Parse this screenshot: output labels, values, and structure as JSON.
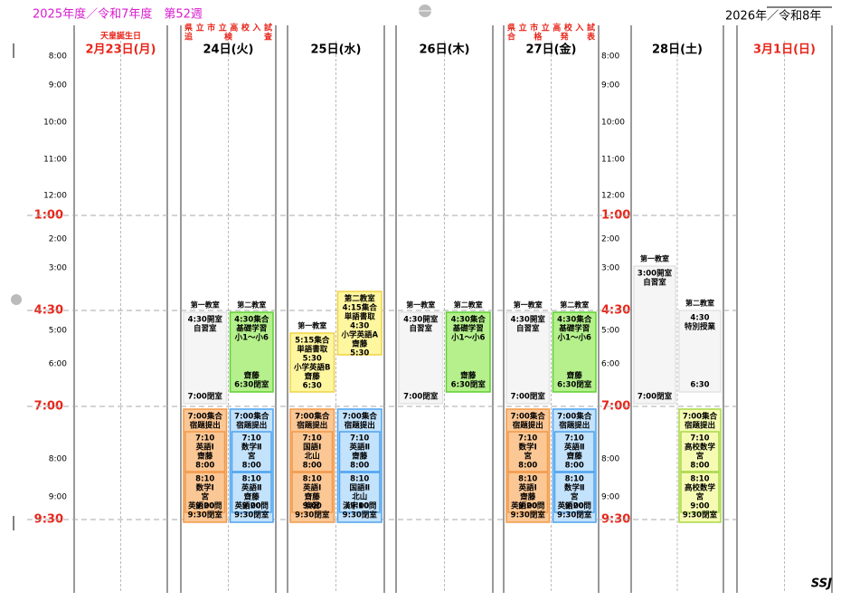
{
  "header": {
    "title": "2025年度／令和7年度　第52週",
    "year_label": "2026年／令和8年"
  },
  "time_labels": [
    {
      "label": "8:00",
      "major": false
    },
    {
      "label": "9:00",
      "major": false
    },
    {
      "label": "10:00",
      "major": false
    },
    {
      "label": "11:00",
      "major": false
    },
    {
      "label": "12:00",
      "major": false
    },
    {
      "label": "1:00",
      "major": true
    },
    {
      "label": "2:00",
      "major": false
    },
    {
      "label": "3:00",
      "major": false
    },
    {
      "label": "4:30",
      "major": true
    },
    {
      "label": "5:00",
      "major": false
    },
    {
      "label": "6:00",
      "major": false
    },
    {
      "label": "7:00",
      "major": true
    },
    {
      "label": "8:00",
      "major": false
    },
    {
      "label": "9:00",
      "major": false
    },
    {
      "label": "9:30",
      "major": true
    }
  ],
  "days": [
    {
      "date": "2月23日(月)",
      "holiday": "天皇誕生日",
      "color": "#e8251a",
      "events": []
    },
    {
      "date": "24日(火)",
      "notes": [
        "県立市立高校入試",
        "追　　検　　査"
      ],
      "color": "#000000",
      "events": [
        {
          "room": "第一教室",
          "color": "#f5f5f5",
          "border": "#e4e4e4",
          "parts": [
            {
              "lines": [
                "4:30開室",
                "自習室"
              ]
            },
            {
              "lines": [
                "7:00閉室"
              ]
            }
          ]
        },
        {
          "room": "第二教室",
          "color": "#b5f08c",
          "border": "#5fd032",
          "parts": [
            {
              "lines": [
                "4:30集合",
                "基礎学習",
                "小1～小6"
              ]
            },
            {
              "lines": [
                "齋藤",
                "6:30閉室"
              ]
            }
          ]
        },
        {
          "color": "#fbc795",
          "border": "#f29a4a",
          "parts": [
            {
              "lines": [
                "7:00集合",
                "宿題提出"
              ]
            },
            {
              "box": true,
              "lines": [
                "7:10",
                "英語Ⅰ",
                "齋藤",
                "8:00"
              ]
            },
            {
              "box": true,
              "lines": [
                "8:10",
                "数学Ⅰ",
                "宮",
                "9:00"
              ]
            },
            {
              "lines": [
                "英語20問",
                "9:30閉室"
              ]
            }
          ]
        },
        {
          "color": "#c3e2fb",
          "border": "#4fa3ee",
          "parts": [
            {
              "lines": [
                "7:00集合",
                "宿題提出"
              ]
            },
            {
              "box": true,
              "lines": [
                "7:10",
                "数学Ⅱ",
                "宮",
                "8:00"
              ]
            },
            {
              "box": true,
              "lines": [
                "8:10",
                "英語Ⅱ",
                "齋藤",
                "9:00"
              ]
            },
            {
              "lines": [
                "英語20問",
                "9:30閉室"
              ]
            }
          ]
        }
      ]
    },
    {
      "date": "25日(水)",
      "color": "#000000",
      "events": [
        {
          "room": "第一教室",
          "color": "#fff6a0",
          "border": "#f0d444",
          "parts": [
            {
              "lines": [
                "5:15集合",
                "単語書取",
                "5:30",
                "小学英語B",
                "齋藤",
                "6:30"
              ]
            }
          ]
        },
        {
          "color": "#fff6a0",
          "border": "#f0d444",
          "parts": [
            {
              "lines": [
                "第二教室",
                "4:15集合",
                "単語書取",
                "4:30",
                "小学英語A",
                "齋藤",
                "5:30"
              ]
            }
          ]
        },
        {
          "color": "#fbc795",
          "border": "#f29a4a",
          "parts": [
            {
              "lines": [
                "7:00集合",
                "宿題提出"
              ]
            },
            {
              "box": true,
              "lines": [
                "7:10",
                "国語Ⅰ",
                "北山",
                "8:00"
              ]
            },
            {
              "box": true,
              "lines": [
                "8:10",
                "英語Ⅰ",
                "齋藤",
                "9:00"
              ]
            },
            {
              "lines": [
                "演習",
                "9:30閉室"
              ]
            }
          ]
        },
        {
          "color": "#c3e2fb",
          "border": "#4fa3ee",
          "parts": [
            {
              "lines": [
                "7:00集合",
                "宿題提出"
              ]
            },
            {
              "box": true,
              "lines": [
                "7:10",
                "英語Ⅱ",
                "齋藤",
                "8:00"
              ]
            },
            {
              "box": true,
              "lines": [
                "8:10",
                "国語Ⅱ",
                "北山",
                "9:00"
              ]
            },
            {
              "lines": [
                "漢字10問",
                "9:30閉室"
              ]
            }
          ]
        }
      ]
    },
    {
      "date": "26日(木)",
      "color": "#000000",
      "events": [
        {
          "room": "第一教室",
          "color": "#f5f5f5",
          "border": "#e4e4e4",
          "parts": [
            {
              "lines": [
                "4:30開室",
                "自習室"
              ]
            },
            {
              "lines": [
                "7:00閉室"
              ]
            }
          ]
        },
        {
          "room": "第二教室",
          "color": "#b5f08c",
          "border": "#5fd032",
          "parts": [
            {
              "lines": [
                "4:30集合",
                "基礎学習",
                "小1～小6"
              ]
            },
            {
              "lines": [
                "齋藤",
                "6:30閉室"
              ]
            }
          ]
        }
      ]
    },
    {
      "date": "27日(金)",
      "notes": [
        "県立市立高校入試",
        "合　格　発　表"
      ],
      "color": "#000000",
      "events": [
        {
          "room": "第一教室",
          "color": "#f5f5f5",
          "border": "#e4e4e4",
          "parts": [
            {
              "lines": [
                "4:30開室",
                "自習室"
              ]
            },
            {
              "lines": [
                "7:00閉室"
              ]
            }
          ]
        },
        {
          "room": "第二教室",
          "color": "#b5f08c",
          "border": "#5fd032",
          "parts": [
            {
              "lines": [
                "4:30集合",
                "基礎学習",
                "小1～小6"
              ]
            },
            {
              "lines": [
                "齋藤",
                "6:30閉室"
              ]
            }
          ]
        },
        {
          "color": "#fbc795",
          "border": "#f29a4a",
          "parts": [
            {
              "lines": [
                "7:00集合",
                "宿題提出"
              ]
            },
            {
              "box": true,
              "lines": [
                "7:10",
                "数学Ⅰ",
                "宮",
                "8:00"
              ]
            },
            {
              "box": true,
              "lines": [
                "8:10",
                "英語Ⅰ",
                "齋藤",
                "9:00"
              ]
            },
            {
              "lines": [
                "英語20問",
                "9:30閉室"
              ]
            }
          ]
        },
        {
          "color": "#c3e2fb",
          "border": "#4fa3ee",
          "parts": [
            {
              "lines": [
                "7:00集合",
                "宿題提出"
              ]
            },
            {
              "box": true,
              "lines": [
                "7:10",
                "英語Ⅱ",
                "齋藤",
                "8:00"
              ]
            },
            {
              "box": true,
              "lines": [
                "8:10",
                "数学Ⅱ",
                "宮",
                "9:00"
              ]
            },
            {
              "lines": [
                "英語20問",
                "9:30閉室"
              ]
            }
          ]
        }
      ]
    },
    {
      "date": "28日(土)",
      "color": "#000000",
      "events": [
        {
          "room": "第一教室",
          "color": "#f5f5f5",
          "border": "#e4e4e4",
          "parts": [
            {
              "lines": [
                "3:00開室",
                "自習室"
              ]
            },
            {
              "lines": [
                "7:00閉室"
              ]
            }
          ]
        },
        {
          "room": "第二教室",
          "color": "#f5f5f5",
          "border": "#e4e4e4",
          "parts": [
            {
              "lines": [
                "4:30",
                "特別授業"
              ]
            },
            {
              "lines": [
                "6:30"
              ]
            }
          ]
        },
        {
          "color": "#f6fbb4",
          "border": "#a8d84a",
          "parts": [
            {
              "lines": [
                "7:00集合",
                "宿題提出"
              ]
            },
            {
              "box": true,
              "lines": [
                "7:10",
                "高校数学",
                "宮",
                "8:00"
              ]
            },
            {
              "box": true,
              "lines": [
                "8:10",
                "高校数学",
                "宮",
                "9:00"
              ]
            },
            {
              "lines": [
                "9:30閉室"
              ]
            }
          ]
        }
      ]
    },
    {
      "date": "3月1日(日)",
      "color": "#e8251a",
      "events": []
    }
  ],
  "footer": {
    "mark": "SSJ"
  }
}
